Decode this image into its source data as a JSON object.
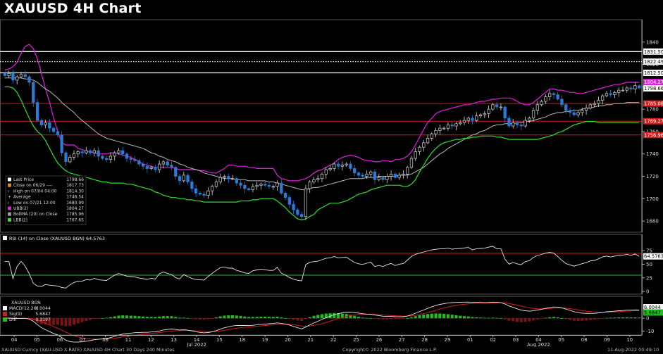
{
  "title": "XAUUSD 4H Chart",
  "colors": {
    "ubb": "#e020e0",
    "lbb": "#2ee02e",
    "bma": "#b8b8b8",
    "up": "#d8d8d8",
    "down": "#2b7bd6",
    "red": "#d41c1c",
    "white": "#ffffff",
    "green": "#1fbf1f",
    "axis": "#aaaaaa"
  },
  "chart_data": [
    {
      "type": "candlestick",
      "title": "",
      "ylim": [
        1670,
        1860
      ],
      "yticks": [
        1680,
        1700,
        1720,
        1740,
        1760,
        1780,
        1800,
        1820,
        1840
      ],
      "xticks": [
        "04",
        "05",
        "06",
        "07",
        "08",
        "11",
        "12",
        "13",
        "14",
        "15",
        "18",
        "19",
        "20",
        "21",
        "22",
        "25",
        "26",
        "27",
        "28",
        "29",
        "01",
        "02",
        "03",
        "04",
        "05",
        "08",
        "09",
        "10"
      ],
      "xmonths": [
        {
          "label": "Jul 2022",
          "at": 8
        },
        {
          "label": "Aug 2022",
          "at": 23
        }
      ],
      "hlines": [
        {
          "value": 1831.5,
          "label": "1831.50",
          "color": "white"
        },
        {
          "value": 1822.49,
          "label": "1822.49",
          "color": "white",
          "dotted": true
        },
        {
          "value": 1812.5,
          "label": "1812.50",
          "color": "white"
        },
        {
          "value": 1785.08,
          "label": "1785.08",
          "color": "red"
        },
        {
          "value": 1769.27,
          "label": "1769.27",
          "color": "red"
        },
        {
          "value": 1756.96,
          "label": "1756.96",
          "color": "red"
        }
      ],
      "price_labels": [
        {
          "value": 1804.27,
          "label": "1804.27",
          "color": "ubb"
        },
        {
          "value": 1798.66,
          "label": "1798.66",
          "color": "white"
        }
      ],
      "legend": [
        {
          "icon": "white",
          "label": "Last Price",
          "value": "1798.66"
        },
        {
          "icon": "orange",
          "label": "Close on 06/29 ----",
          "value": "1817.73"
        },
        {
          "icon": "tick",
          "label": "High on 07/04 04:00",
          "value": "1814.30"
        },
        {
          "icon": "plus",
          "label": "Average",
          "value": "1746.54"
        },
        {
          "icon": "tick",
          "label": "Low on 07/21 12:00",
          "value": "1680.99"
        },
        {
          "icon": "magenta",
          "label": "UBB(2)",
          "value": "1804.27"
        },
        {
          "icon": "gray",
          "label": "BollMA (20)  on Close",
          "value": "1785.96"
        },
        {
          "icon": "green",
          "label": "LBB(2)",
          "value": "1767.65"
        }
      ],
      "close": [
        1810,
        1812,
        1806,
        1809,
        1811,
        1809,
        1804,
        1786,
        1770,
        1766,
        1768,
        1763,
        1760,
        1757,
        1741,
        1733,
        1737,
        1740,
        1742,
        1741,
        1743,
        1741,
        1743,
        1738,
        1736,
        1735,
        1738,
        1741,
        1743,
        1740,
        1736,
        1735,
        1734,
        1731,
        1729,
        1727,
        1728,
        1726,
        1731,
        1733,
        1730,
        1728,
        1720,
        1716,
        1721,
        1715,
        1709,
        1705,
        1704,
        1703,
        1707,
        1711,
        1715,
        1719,
        1720,
        1718,
        1718,
        1714,
        1712,
        1709,
        1708,
        1711,
        1712,
        1713,
        1712,
        1711,
        1711,
        1714,
        1705,
        1701,
        1695,
        1690,
        1686,
        1684,
        1709,
        1715,
        1717,
        1718,
        1722,
        1726,
        1727,
        1731,
        1729,
        1730,
        1731,
        1727,
        1723,
        1721,
        1720,
        1722,
        1724,
        1717,
        1719,
        1717,
        1720,
        1722,
        1719,
        1721,
        1722,
        1728,
        1736,
        1742,
        1746,
        1750,
        1754,
        1758,
        1761,
        1763,
        1763,
        1766,
        1765,
        1767,
        1768,
        1770,
        1772,
        1770,
        1774,
        1775,
        1776,
        1780,
        1784,
        1782,
        1782,
        1772,
        1765,
        1768,
        1766,
        1765,
        1770,
        1772,
        1779,
        1784,
        1787,
        1791,
        1794,
        1793,
        1789,
        1784,
        1779,
        1777,
        1775,
        1777,
        1779,
        1781,
        1784,
        1785,
        1788,
        1792,
        1794,
        1793,
        1795,
        1797,
        1797,
        1799,
        1798,
        1801,
        1799
      ],
      "ubb": [
        1815,
        1816,
        1818,
        1822,
        1830,
        1836,
        1838,
        1834,
        1825,
        1812,
        1798,
        1786,
        1772,
        1760,
        1750,
        1748,
        1748,
        1748,
        1745,
        1744,
        1742,
        1742,
        1741,
        1740,
        1740,
        1740,
        1741,
        1741,
        1740,
        1739,
        1738,
        1737,
        1735,
        1733,
        1731,
        1730,
        1729,
        1728,
        1728,
        1728,
        1728,
        1728,
        1727,
        1726,
        1726,
        1726,
        1726,
        1726,
        1725,
        1725,
        1724,
        1723,
        1723,
        1725,
        1727,
        1730,
        1730,
        1729,
        1729,
        1729,
        1728,
        1728,
        1727,
        1727,
        1727,
        1727,
        1727,
        1721,
        1718,
        1717,
        1716,
        1716,
        1716,
        1717,
        1718,
        1720,
        1723,
        1725,
        1726,
        1728,
        1730,
        1732,
        1735,
        1737,
        1738,
        1739,
        1738,
        1737,
        1735,
        1734,
        1734,
        1733,
        1733,
        1734,
        1734,
        1733,
        1735,
        1735,
        1736,
        1738,
        1742,
        1748,
        1755,
        1762,
        1768,
        1772,
        1776,
        1778,
        1779,
        1780,
        1781,
        1782,
        1783,
        1784,
        1784,
        1785,
        1786,
        1787,
        1787,
        1788,
        1789,
        1789,
        1790,
        1790,
        1790,
        1789,
        1787,
        1785,
        1784,
        1784,
        1786,
        1789,
        1792,
        1795,
        1798,
        1798,
        1797,
        1797,
        1796,
        1795,
        1795,
        1794,
        1794,
        1795,
        1796,
        1797,
        1798,
        1799,
        1800,
        1801,
        1802,
        1802,
        1803,
        1804,
        1804,
        1804,
        1804
      ],
      "bma": [
        1808,
        1808,
        1808,
        1808,
        1808,
        1807,
        1807,
        1806,
        1804,
        1801,
        1798,
        1796,
        1793,
        1790,
        1786,
        1783,
        1780,
        1777,
        1773,
        1770,
        1767,
        1764,
        1761,
        1758,
        1756,
        1754,
        1753,
        1752,
        1751,
        1750,
        1749,
        1748,
        1747,
        1746,
        1745,
        1743,
        1741,
        1740,
        1738,
        1737,
        1735,
        1734,
        1733,
        1731,
        1730,
        1728,
        1727,
        1726,
        1725,
        1723,
        1722,
        1721,
        1720,
        1719,
        1718,
        1718,
        1718,
        1717,
        1717,
        1717,
        1716,
        1716,
        1716,
        1716,
        1716,
        1715,
        1715,
        1714,
        1713,
        1712,
        1711,
        1710,
        1709,
        1708,
        1708,
        1709,
        1710,
        1710,
        1711,
        1712,
        1713,
        1714,
        1715,
        1716,
        1717,
        1718,
        1718,
        1718,
        1718,
        1719,
        1719,
        1719,
        1720,
        1720,
        1720,
        1720,
        1720,
        1721,
        1721,
        1721,
        1722,
        1724,
        1726,
        1728,
        1731,
        1734,
        1737,
        1740,
        1742,
        1745,
        1747,
        1749,
        1751,
        1753,
        1755,
        1757,
        1758,
        1760,
        1761,
        1763,
        1765,
        1766,
        1766,
        1767,
        1767,
        1767,
        1768,
        1768,
        1769,
        1769,
        1770,
        1771,
        1772,
        1773,
        1775,
        1776,
        1777,
        1777,
        1778,
        1778,
        1779,
        1779,
        1780,
        1781,
        1781,
        1782,
        1783,
        1783,
        1784,
        1784,
        1785,
        1785,
        1785,
        1786,
        1786,
        1786,
        1786
      ],
      "lbb": [
        1800,
        1800,
        1799,
        1795,
        1788,
        1780,
        1772,
        1765,
        1760,
        1757,
        1752,
        1745,
        1738,
        1732,
        1728,
        1725,
        1723,
        1722,
        1721,
        1720,
        1719,
        1718,
        1717,
        1716,
        1715,
        1715,
        1714,
        1714,
        1714,
        1714,
        1713,
        1713,
        1712,
        1711,
        1710,
        1709,
        1708,
        1706,
        1705,
        1703,
        1702,
        1701,
        1701,
        1700,
        1700,
        1699,
        1699,
        1698,
        1698,
        1697,
        1697,
        1697,
        1697,
        1697,
        1697,
        1697,
        1697,
        1697,
        1698,
        1698,
        1698,
        1699,
        1699,
        1700,
        1700,
        1700,
        1700,
        1698,
        1695,
        1692,
        1688,
        1685,
        1682,
        1681,
        1682,
        1684,
        1686,
        1690,
        1692,
        1694,
        1696,
        1696,
        1696,
        1697,
        1698,
        1700,
        1702,
        1704,
        1705,
        1706,
        1708,
        1709,
        1710,
        1711,
        1712,
        1712,
        1712,
        1712,
        1711,
        1711,
        1713,
        1717,
        1724,
        1730,
        1736,
        1741,
        1745,
        1748,
        1750,
        1751,
        1752,
        1753,
        1753,
        1754,
        1754,
        1755,
        1755,
        1756,
        1756,
        1756,
        1756,
        1755,
        1755,
        1754,
        1753,
        1753,
        1753,
        1753,
        1753,
        1753,
        1753,
        1753,
        1754,
        1755,
        1756,
        1757,
        1759,
        1760,
        1762,
        1764,
        1766,
        1767,
        1768,
        1769,
        1769,
        1769,
        1768,
        1768,
        1768,
        1768,
        1768,
        1768,
        1768,
        1768,
        1768,
        1768,
        1768
      ]
    },
    {
      "type": "line",
      "title": "RSI (14)  on Close (XAUUSD BGN)",
      "value_label": "64.5763",
      "ylim": [
        -5,
        105
      ],
      "yticks": [
        0,
        25,
        50,
        75
      ],
      "bands": [
        70,
        30
      ],
      "last": 64.5763
    },
    {
      "type": "bar",
      "title": "XAUUSD BGN",
      "legend": [
        {
          "icon": "white",
          "label": "MACD(12,26)",
          "value": "6.0044"
        },
        {
          "icon": "red",
          "label": "Sig(9)",
          "value": "5.6847"
        },
        {
          "icon": "green",
          "label": "Diff",
          "value": "0.3197"
        }
      ],
      "ylim": [
        -13,
        17
      ],
      "yticks": [
        0,
        -10
      ],
      "macd_label": "6.0044",
      "sig_label": "5.6847"
    }
  ],
  "footer": {
    "left": "XAUUSD Curncy (XAU-USD X-RATE) XAUUSD 4H Chart 30 Days 240 Minutes",
    "center": "Copyright© 2022 Bloomberg Finance L.P.",
    "right": "11-Aug-2022 00:49:10"
  }
}
